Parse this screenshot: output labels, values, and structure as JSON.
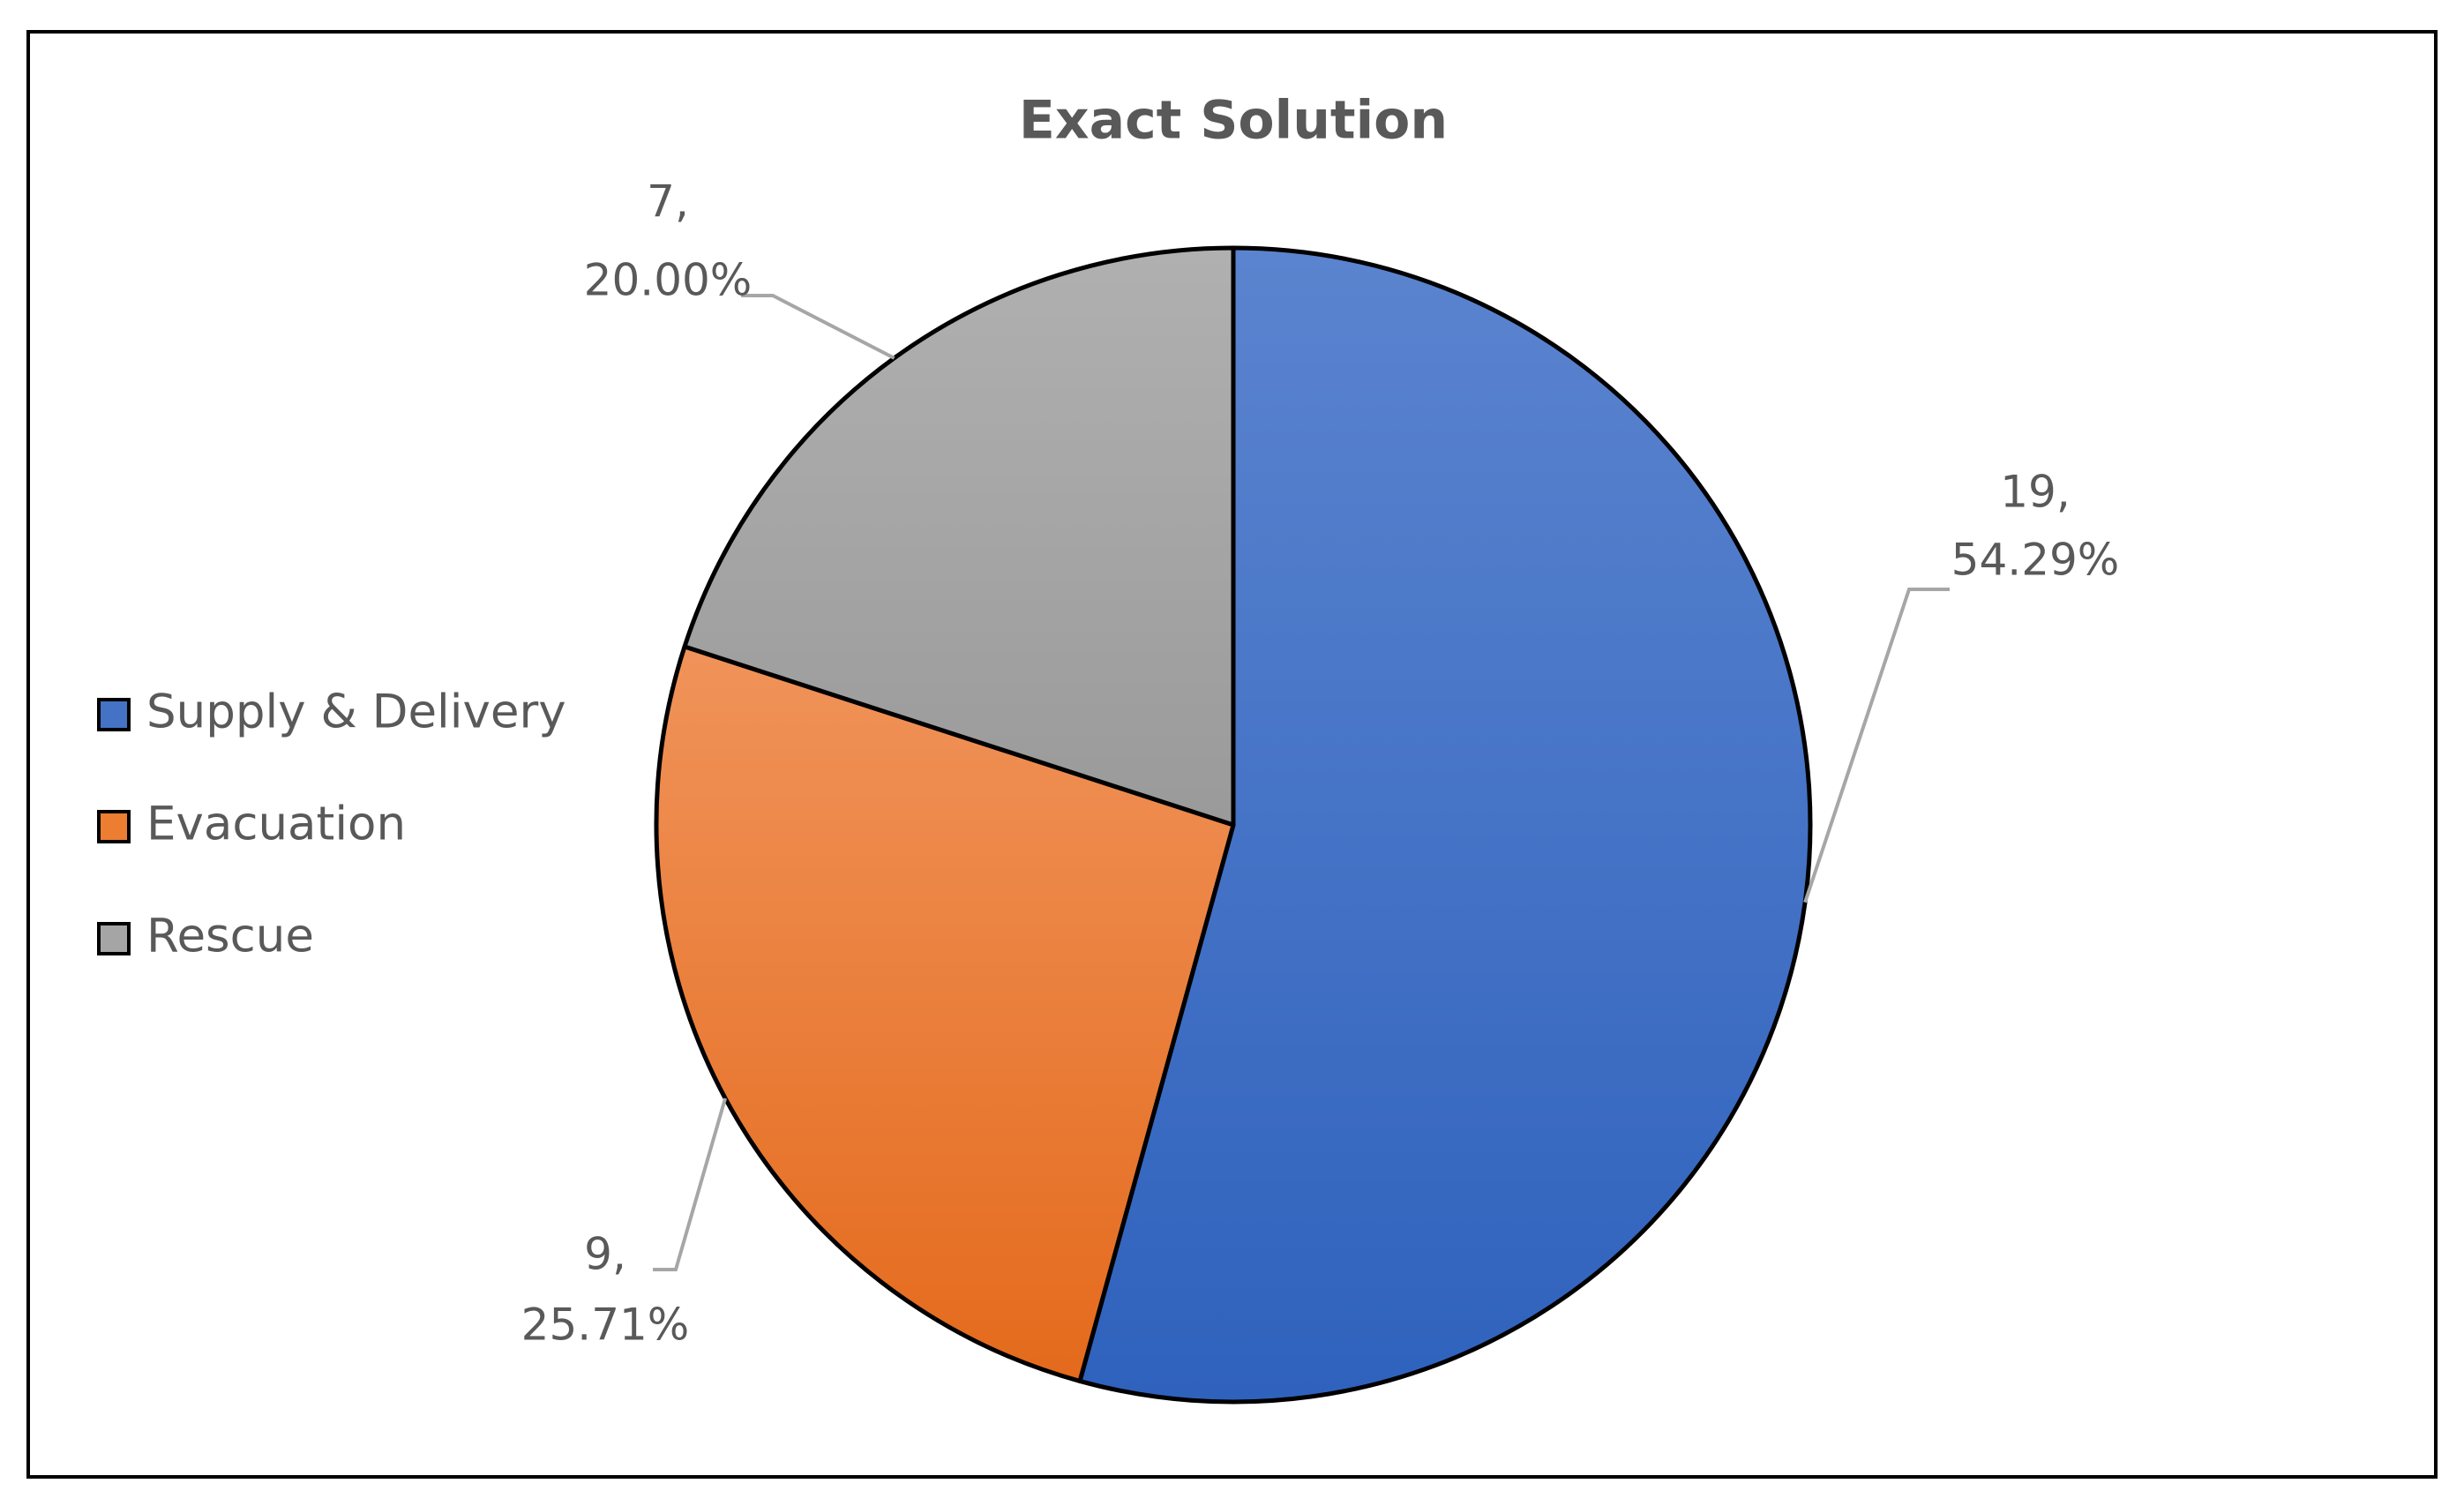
{
  "chart_data": {
    "type": "pie",
    "title": "Exact Solution",
    "categories": [
      "Supply & Delivery",
      "Evacuation",
      "Rescue"
    ],
    "values": [
      19,
      9,
      7
    ],
    "value_labels": [
      "19,",
      "9,",
      "7,"
    ],
    "percent_labels": [
      "54.29%",
      "25.71%",
      "20.00%"
    ],
    "colors": [
      "#4472c4",
      "#ed7d31",
      "#a5a5a5"
    ],
    "legend": "left"
  }
}
